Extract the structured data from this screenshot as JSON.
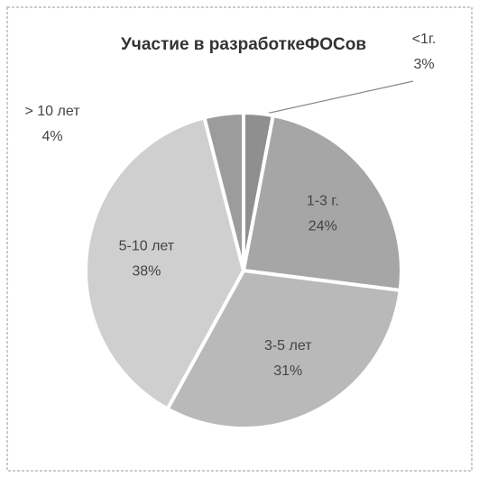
{
  "chart_data": {
    "type": "pie",
    "title": "Участие в разработкеФОСов",
    "categories": [
      "<1г.",
      "1-3 г.",
      "3-5 лет",
      "5-10 лет",
      "> 10 лет"
    ],
    "values": [
      3,
      24,
      31,
      38,
      4
    ],
    "value_labels": [
      "3%",
      "24%",
      "31%",
      "38%",
      "4%"
    ],
    "colors": [
      "#8f8f8f",
      "#a6a6a6",
      "#b9b9b9",
      "#cfcfcf",
      "#9c9c9c"
    ]
  }
}
